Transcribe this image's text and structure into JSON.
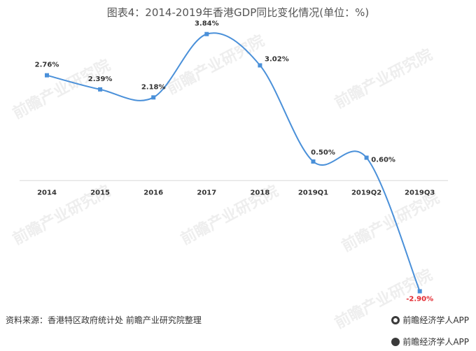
{
  "title": "图表4：2014-2019年香港GDP同比变化情况(单位：%)",
  "source": "资料来源：香港特区政府统计处 前瞻产业研究院整理",
  "brand_label": "前瞻经济学人APP",
  "bottom_brand_label": "前瞻经济学人APP",
  "watermark_text": "前瞻产业研究院",
  "colors": {
    "line": "#4a90d9",
    "negative_label": "#e3262e",
    "axis": "#d9d9d9"
  },
  "chart_data": {
    "type": "line",
    "title": "图表4：2014-2019年香港GDP同比变化情况(单位：%)",
    "categories": [
      "2014",
      "2015",
      "2016",
      "2017",
      "2018",
      "2019Q1",
      "2019Q2",
      "2019Q3"
    ],
    "series": [
      {
        "values": [
          2.76,
          2.39,
          2.18,
          3.84,
          3.02,
          0.5,
          0.6,
          -2.9
        ]
      }
    ],
    "data_labels": [
      "2.76%",
      "2.39%",
      "2.18%",
      "3.84%",
      "3.02%",
      "0.50%",
      "0.60%",
      "-2.90%"
    ],
    "ylim": [
      -3.0,
      4.0
    ],
    "grid": false,
    "smooth": true
  }
}
